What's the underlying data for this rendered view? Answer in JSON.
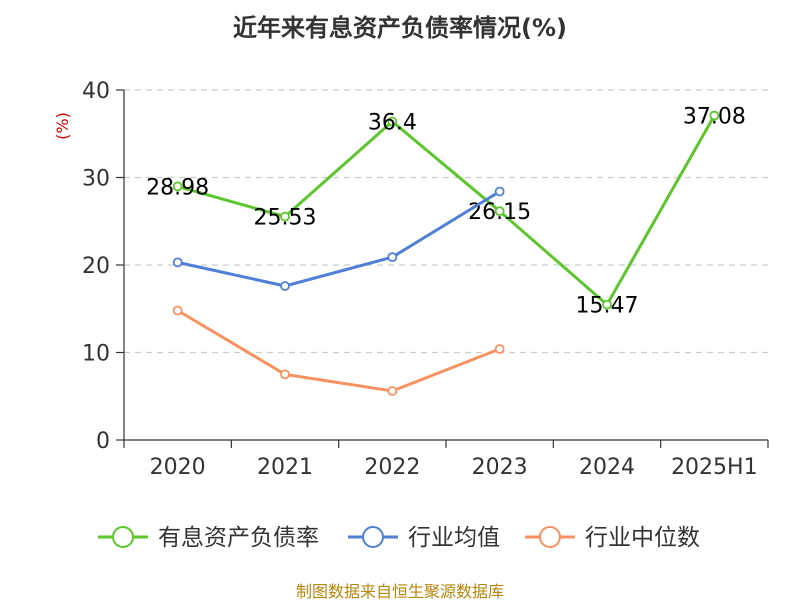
{
  "chart_data": {
    "type": "line",
    "title": "近年来有息资产负债率情况(%)",
    "ylabel": "(%)",
    "xlabel": "",
    "categories": [
      "2020",
      "2021",
      "2022",
      "2023",
      "2024",
      "2025H1"
    ],
    "yticks": [
      "0",
      "10",
      "20",
      "30",
      "40"
    ],
    "ylim": [
      0,
      40
    ],
    "grid": true,
    "legend_position": "bottom",
    "series": [
      {
        "name": "有息资产负债率",
        "color": "#5cc62c",
        "values": [
          28.98,
          25.53,
          36.4,
          26.15,
          15.47,
          37.08
        ],
        "labels": [
          "28.98",
          "25.53",
          "36.4",
          "26.15",
          "15.47",
          "37.08"
        ]
      },
      {
        "name": "行业均值",
        "color": "#4f7fd6",
        "values": [
          20.3,
          17.6,
          20.9,
          28.4,
          null,
          null
        ]
      },
      {
        "name": "行业中位数",
        "color": "#f79160",
        "values": [
          14.8,
          7.5,
          5.6,
          10.4,
          null,
          null
        ]
      }
    ]
  },
  "source": "制图数据来自恒生聚源数据库"
}
